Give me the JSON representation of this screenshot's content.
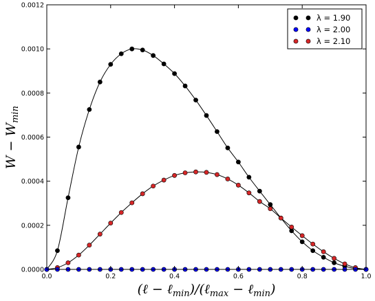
{
  "chart_data": {
    "type": "line",
    "title": "",
    "xlabel": "(ℓ − ℓmin)/(ℓmax − ℓmin)",
    "ylabel": "W − Wmin",
    "xlim": [
      0,
      1
    ],
    "ylim": [
      0,
      0.0012
    ],
    "grid": false,
    "legend_position": "top-right",
    "x_ticks": [
      "0.0",
      "0.2",
      "0.4",
      "0.6",
      "0.8",
      "1.0"
    ],
    "y_ticks": [
      "0.0000",
      "0.0002",
      "0.0004",
      "0.0006",
      "0.0008",
      "0.0010",
      "0.0012"
    ],
    "x": [
      0,
      0.0333,
      0.0667,
      0.1,
      0.1333,
      0.1667,
      0.2,
      0.2333,
      0.2667,
      0.3,
      0.3333,
      0.3667,
      0.4,
      0.4333,
      0.4667,
      0.5,
      0.5333,
      0.5667,
      0.6,
      0.6333,
      0.6667,
      0.7,
      0.7333,
      0.7667,
      0.8,
      0.8333,
      0.8667,
      0.9,
      0.9333,
      0.9667,
      1.0
    ],
    "series": [
      {
        "name": "λ = 1.90",
        "color": "#000000",
        "values": [
          0,
          8.5e-05,
          0.000325,
          0.000555,
          0.000725,
          0.00085,
          0.00093,
          0.000978,
          0.001,
          0.000995,
          0.00097,
          0.000932,
          0.000888,
          0.000832,
          0.000768,
          0.000698,
          0.000625,
          0.000551,
          0.000487,
          0.000418,
          0.000355,
          0.000294,
          0.000233,
          0.000175,
          0.000125,
          8.5e-05,
          5.5e-05,
          3e-05,
          1.4e-05,
          4e-06,
          0
        ]
      },
      {
        "name": "λ = 2.00",
        "color": "#0000ff",
        "values": [
          0,
          0,
          0,
          0,
          0,
          0,
          0,
          0,
          0,
          0,
          0,
          0,
          0,
          0,
          0,
          0,
          0,
          0,
          0,
          0,
          0,
          0,
          0,
          0,
          0,
          0,
          0,
          0,
          0,
          0,
          0
        ]
      },
      {
        "name": "λ = 2.10",
        "color": "#d62728",
        "values": [
          0,
          8e-06,
          3e-05,
          6.5e-05,
          0.00011,
          0.00016,
          0.00021,
          0.000258,
          0.000302,
          0.000343,
          0.000378,
          0.000405,
          0.000426,
          0.000438,
          0.000442,
          0.00044,
          0.00043,
          0.00041,
          0.000382,
          0.000347,
          0.000308,
          0.000275,
          0.000233,
          0.000192,
          0.000153,
          0.000115,
          8e-05,
          5e-05,
          2.5e-05,
          8e-06,
          0
        ]
      }
    ]
  }
}
